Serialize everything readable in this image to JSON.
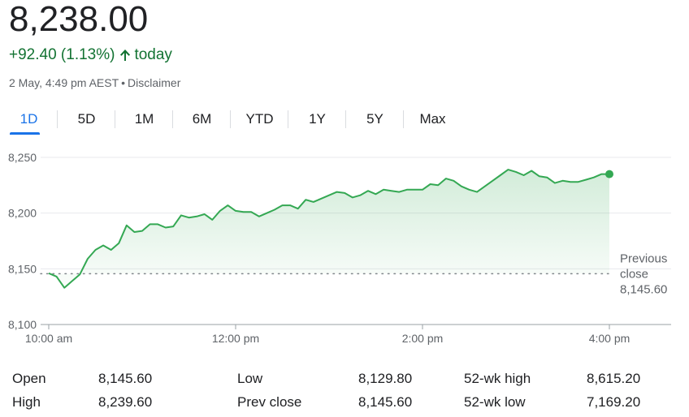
{
  "quote": {
    "price": "8,238.00",
    "change": "+92.40 (1.13%)",
    "change_period": "today",
    "timestamp": "2 May, 4:49 pm AEST",
    "separator": "•",
    "disclaimer": "Disclaimer",
    "accent_color": "#137333"
  },
  "tabs": [
    {
      "label": "1D",
      "active": true
    },
    {
      "label": "5D",
      "active": false
    },
    {
      "label": "1M",
      "active": false
    },
    {
      "label": "6M",
      "active": false
    },
    {
      "label": "YTD",
      "active": false
    },
    {
      "label": "1Y",
      "active": false
    },
    {
      "label": "5Y",
      "active": false
    },
    {
      "label": "Max",
      "active": false
    }
  ],
  "chart_data": {
    "type": "area",
    "ylim": [
      8100,
      8250
    ],
    "y_ticks": [
      {
        "value": 8250,
        "label": "8,250"
      },
      {
        "value": 8200,
        "label": "8,200"
      },
      {
        "value": 8150,
        "label": "8,150"
      },
      {
        "value": 8100,
        "label": "8,100"
      }
    ],
    "x_range_minutes": [
      0,
      366
    ],
    "x_ticks": [
      {
        "minute": 0,
        "label": "10:00 am"
      },
      {
        "minute": 120,
        "label": "12:00 pm"
      },
      {
        "minute": 240,
        "label": "2:00 pm"
      },
      {
        "minute": 360,
        "label": "4:00 pm"
      }
    ],
    "previous_close": {
      "value": 8145.6,
      "label_line1": "Previous",
      "label_line2": "close",
      "label_value": "8,145.60"
    },
    "line_color": "#34a853",
    "series": [
      {
        "values": [
          [
            0,
            8146
          ],
          [
            5,
            8143
          ],
          [
            10,
            8133
          ],
          [
            15,
            8139
          ],
          [
            20,
            8145
          ],
          [
            25,
            8159
          ],
          [
            30,
            8167
          ],
          [
            35,
            8171
          ],
          [
            40,
            8167
          ],
          [
            45,
            8173
          ],
          [
            50,
            8189
          ],
          [
            55,
            8183
          ],
          [
            60,
            8184
          ],
          [
            65,
            8190
          ],
          [
            70,
            8190
          ],
          [
            75,
            8187
          ],
          [
            80,
            8188
          ],
          [
            85,
            8198
          ],
          [
            90,
            8196
          ],
          [
            95,
            8197
          ],
          [
            100,
            8199
          ],
          [
            105,
            8194
          ],
          [
            110,
            8202
          ],
          [
            115,
            8207
          ],
          [
            120,
            8202
          ],
          [
            125,
            8201
          ],
          [
            130,
            8201
          ],
          [
            135,
            8197
          ],
          [
            140,
            8200
          ],
          [
            145,
            8203
          ],
          [
            150,
            8207
          ],
          [
            155,
            8207
          ],
          [
            160,
            8204
          ],
          [
            165,
            8212
          ],
          [
            170,
            8210
          ],
          [
            175,
            8213
          ],
          [
            180,
            8216
          ],
          [
            185,
            8219
          ],
          [
            190,
            8218
          ],
          [
            195,
            8214
          ],
          [
            200,
            8216
          ],
          [
            205,
            8220
          ],
          [
            210,
            8217
          ],
          [
            215,
            8221
          ],
          [
            220,
            8220
          ],
          [
            225,
            8219
          ],
          [
            230,
            8221
          ],
          [
            235,
            8221
          ],
          [
            240,
            8221
          ],
          [
            245,
            8226
          ],
          [
            250,
            8225
          ],
          [
            255,
            8231
          ],
          [
            260,
            8229
          ],
          [
            265,
            8224
          ],
          [
            270,
            8221
          ],
          [
            275,
            8219
          ],
          [
            280,
            8224
          ],
          [
            285,
            8229
          ],
          [
            290,
            8234
          ],
          [
            295,
            8239
          ],
          [
            300,
            8237
          ],
          [
            305,
            8234
          ],
          [
            310,
            8238
          ],
          [
            315,
            8233
          ],
          [
            320,
            8232
          ],
          [
            325,
            8227
          ],
          [
            330,
            8229
          ],
          [
            335,
            8228
          ],
          [
            340,
            8228
          ],
          [
            345,
            8230
          ],
          [
            350,
            8232
          ],
          [
            355,
            8235
          ],
          [
            360,
            8235
          ]
        ]
      }
    ]
  },
  "stats": [
    {
      "label": "Open",
      "value": "8,145.60"
    },
    {
      "label": "High",
      "value": "8,239.60"
    },
    {
      "label": "Low",
      "value": "8,129.80"
    },
    {
      "label": "Prev close",
      "value": "8,145.60"
    },
    {
      "label": "52-wk high",
      "value": "8,615.20"
    },
    {
      "label": "52-wk low",
      "value": "7,169.20"
    }
  ]
}
